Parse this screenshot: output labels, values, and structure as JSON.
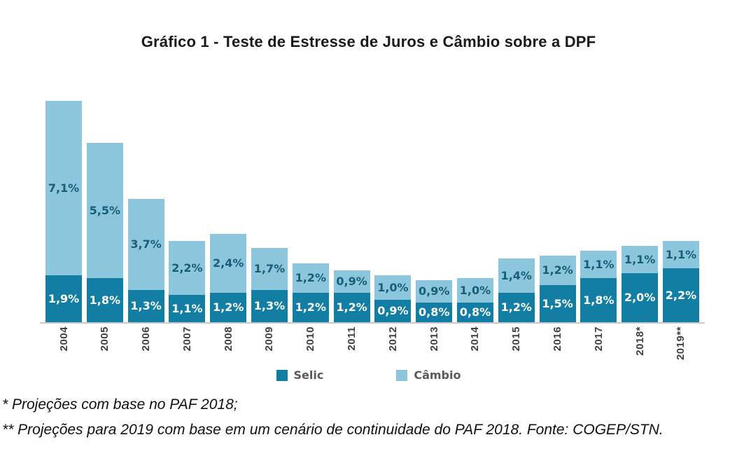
{
  "title": "Gráfico 1 - Teste de Estresse de Juros e Câmbio sobre a DPF",
  "chart_data": {
    "type": "bar",
    "stacked": true,
    "title": "Gráfico 1 - Teste de Estresse de Juros e Câmbio sobre a DPF",
    "categories": [
      "2004",
      "2005",
      "2006",
      "2007",
      "2008",
      "2009",
      "2010",
      "2011",
      "2012",
      "2013",
      "2014",
      "2015",
      "2016",
      "2017",
      "2018*",
      "2019**"
    ],
    "series": [
      {
        "name": "Selic",
        "key": "selic",
        "color": "#137EA4",
        "label_color": "#ffffff",
        "values": [
          1.9,
          1.8,
          1.3,
          1.1,
          1.2,
          1.3,
          1.2,
          1.2,
          0.9,
          0.8,
          0.8,
          1.2,
          1.5,
          1.8,
          2.0,
          2.2
        ],
        "labels": [
          "1,9%",
          "1,8%",
          "1,3%",
          "1,1%",
          "1,2%",
          "1,3%",
          "1,2%",
          "1,2%",
          "0,9%",
          "0,8%",
          "0,8%",
          "1,2%",
          "1,5%",
          "1,8%",
          "2,0%",
          "2,2%"
        ]
      },
      {
        "name": "Câmbio",
        "key": "cambio",
        "color": "#8CC6DC",
        "label_color": "#175E78",
        "values": [
          7.1,
          5.5,
          3.7,
          2.2,
          2.4,
          1.7,
          1.2,
          0.9,
          1.0,
          0.9,
          1.0,
          1.4,
          1.2,
          1.1,
          1.1,
          1.1
        ],
        "labels": [
          "7,1%",
          "5,5%",
          "3,7%",
          "2,2%",
          "2,4%",
          "1,7%",
          "1,2%",
          "0,9%",
          "1,0%",
          "0,9%",
          "1,0%",
          "1,4%",
          "1,2%",
          "1,1%",
          "1,1%",
          "1,1%"
        ]
      }
    ],
    "xlabel": "",
    "ylabel": "",
    "ylim": [
      0,
      9.0
    ],
    "grid": false,
    "legend_position": "bottom",
    "axis_line_color": "#c9c9c9",
    "tick_color": "#404040",
    "legend_text_color": "#595959"
  },
  "footnotes": [
    "* Projeções com base no PAF 2018;",
    "** Projeções para 2019 com base em um cenário de continuidade do PAF 2018. Fonte: COGEP/STN."
  ]
}
